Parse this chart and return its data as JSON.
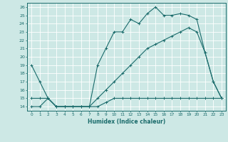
{
  "xlabel": "Humidex (Indice chaleur)",
  "bg_color": "#cde8e5",
  "grid_color": "#ffffff",
  "line_color": "#1a6b6b",
  "xlim": [
    -0.5,
    23.5
  ],
  "ylim": [
    13.5,
    26.5
  ],
  "xticks": [
    0,
    1,
    2,
    3,
    4,
    5,
    6,
    7,
    8,
    9,
    10,
    11,
    12,
    13,
    14,
    15,
    16,
    17,
    18,
    19,
    20,
    21,
    22,
    23
  ],
  "yticks": [
    14,
    15,
    16,
    17,
    18,
    19,
    20,
    21,
    22,
    23,
    24,
    25,
    26
  ],
  "line1_x": [
    0,
    1,
    2,
    3,
    4,
    5,
    6,
    7,
    8,
    9,
    10,
    11,
    12,
    13,
    14,
    15,
    16,
    17,
    18,
    19,
    20,
    21,
    22,
    23
  ],
  "line1_y": [
    19,
    17,
    15,
    14,
    14,
    14,
    14,
    14,
    19,
    21,
    23,
    23,
    24.5,
    24,
    25.2,
    26,
    25,
    25,
    25.2,
    25,
    24.5,
    20.5,
    17,
    15
  ],
  "line2_x": [
    0,
    1,
    2,
    3,
    4,
    5,
    6,
    7,
    8,
    9,
    10,
    11,
    12,
    13,
    14,
    15,
    16,
    17,
    18,
    19,
    20,
    21,
    22,
    23
  ],
  "line2_y": [
    15,
    15,
    15,
    14,
    14,
    14,
    14,
    14,
    15,
    16,
    17,
    18,
    19,
    20,
    21,
    21.5,
    22,
    22.5,
    23,
    23.5,
    23,
    20.5,
    17,
    15
  ],
  "line3_x": [
    0,
    1,
    2,
    3,
    4,
    5,
    6,
    7,
    8,
    9,
    10,
    11,
    12,
    13,
    14,
    15,
    16,
    17,
    18,
    19,
    20,
    21,
    22,
    23
  ],
  "line3_y": [
    14,
    14,
    15,
    14,
    14,
    14,
    14,
    14,
    14,
    14.5,
    15,
    15,
    15,
    15,
    15,
    15,
    15,
    15,
    15,
    15,
    15,
    15,
    15,
    15
  ]
}
